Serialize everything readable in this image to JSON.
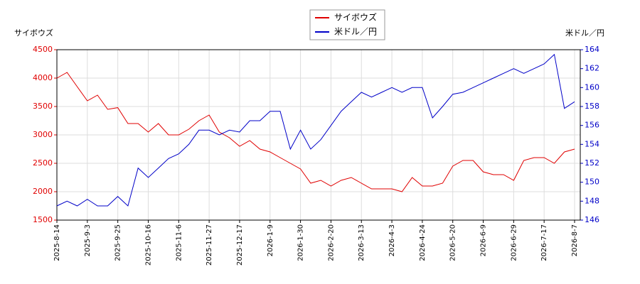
{
  "chart_data": {
    "type": "line",
    "y_label": "サイボウズ",
    "y2_label": "米ドル／円",
    "categories": [
      "2025-8-14",
      null,
      null,
      "2025-9-3",
      null,
      null,
      "2025-9-25",
      null,
      null,
      "2025-10-16",
      null,
      null,
      "2025-11-6",
      null,
      null,
      "2025-11-27",
      null,
      null,
      "2025-12-17",
      null,
      null,
      "2026-1-9",
      null,
      null,
      "2026-1-30",
      null,
      null,
      "2026-2-20",
      null,
      null,
      "2026-3-13",
      null,
      null,
      "2026-4-3",
      null,
      null,
      "2026-4-24",
      null,
      null,
      "2026-5-20",
      null,
      null,
      "2026-6-9",
      null,
      null,
      "2026-6-29",
      null,
      null,
      "2026-7-17",
      null,
      null,
      "2026-8-7"
    ],
    "series": [
      {
        "name": "サイボウズ",
        "color": "#e00000",
        "axis": "y",
        "values": [
          4000,
          4100,
          3850,
          3600,
          3700,
          3450,
          3480,
          3200,
          3200,
          3050,
          3200,
          3000,
          3000,
          3100,
          3250,
          3350,
          3050,
          2950,
          2800,
          2900,
          2750,
          2700,
          2600,
          2500,
          2400,
          2150,
          2200,
          2100,
          2200,
          2250,
          2150,
          2050,
          2050,
          2050,
          2000,
          2250,
          2100,
          2100,
          2150,
          2450,
          2550,
          2550,
          2350,
          2300,
          2300,
          2200,
          2550,
          2600,
          2600,
          2500,
          2700,
          2750
        ]
      },
      {
        "name": "米ドル／円",
        "color": "#0000c8",
        "axis": "y2",
        "values": [
          147.5,
          148,
          147.5,
          148.2,
          147.5,
          147.5,
          148.5,
          147.5,
          151.5,
          150.5,
          151.5,
          152.5,
          153,
          154,
          155.5,
          155.5,
          155,
          155.5,
          155.3,
          156.5,
          156.5,
          157.5,
          157.5,
          153.5,
          155.5,
          153.5,
          154.5,
          156,
          157.5,
          158.5,
          159.5,
          159,
          159.5,
          160,
          159.5,
          160,
          160,
          156.8,
          158,
          159.3,
          159.5,
          160,
          160.5,
          161,
          161.5,
          162,
          161.5,
          162,
          162.5,
          163.5,
          157.8,
          158.5
        ]
      }
    ],
    "ylim": [
      1500,
      4500
    ],
    "yticks": [
      1500,
      2000,
      2500,
      3000,
      3500,
      4000,
      4500
    ],
    "y2lim": [
      146,
      164
    ],
    "y2ticks": [
      146,
      148,
      150,
      152,
      154,
      156,
      158,
      160,
      162,
      164
    ],
    "grid": true
  }
}
